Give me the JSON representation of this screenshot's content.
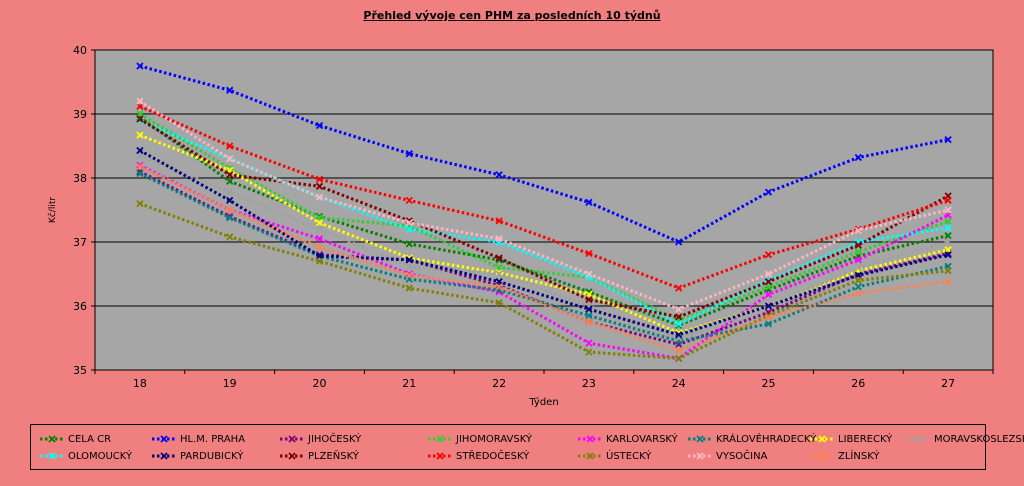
{
  "chart_data": {
    "type": "line",
    "title": "Přehled vývoje cen PHM za posledních 10 týdnů",
    "xlabel": "Týden",
    "ylabel": "Kč/litr",
    "x": [
      18,
      19,
      20,
      21,
      22,
      23,
      24,
      25,
      26,
      27
    ],
    "ylim": [
      35,
      40
    ],
    "yticks": [
      35,
      36,
      37,
      38,
      39,
      40
    ],
    "grid": true,
    "legend": "bottom",
    "series": [
      {
        "name": "CELA CR",
        "color": "#008000",
        "values": [
          38.95,
          37.95,
          37.4,
          36.97,
          36.72,
          36.22,
          35.7,
          36.25,
          36.78,
          37.1
        ]
      },
      {
        "name": "HL.M. PRAHA",
        "color": "#0000ff",
        "values": [
          39.75,
          39.37,
          38.82,
          38.38,
          38.05,
          37.62,
          37.0,
          37.78,
          38.32,
          38.6
        ]
      },
      {
        "name": "JIHOČESKÝ",
        "color": "#800080",
        "values": [
          38.1,
          37.4,
          36.8,
          36.72,
          36.32,
          35.75,
          35.4,
          35.9,
          36.5,
          36.82
        ]
      },
      {
        "name": "JIHOMORAVSKÝ",
        "color": "#33cc33",
        "values": [
          39.0,
          38.15,
          37.38,
          37.25,
          36.6,
          36.45,
          35.78,
          36.3,
          36.85,
          37.32
        ]
      },
      {
        "name": "KARLOVARSKÝ",
        "color": "#ff00ff",
        "values": [
          38.2,
          37.5,
          37.05,
          36.5,
          36.22,
          35.42,
          35.18,
          36.18,
          36.72,
          37.42
        ]
      },
      {
        "name": "KRÁLOVÉHRADECKÝ",
        "color": "#008080",
        "values": [
          38.07,
          37.38,
          36.78,
          36.42,
          36.25,
          35.85,
          35.45,
          35.72,
          36.3,
          36.62
        ]
      },
      {
        "name": "LIBERECKÝ",
        "color": "#ffff00",
        "values": [
          38.67,
          38.12,
          37.3,
          36.75,
          36.52,
          36.18,
          35.58,
          36.0,
          36.55,
          36.88
        ]
      },
      {
        "name": "MORAVSKOSLEZSKÝ",
        "color": "#a0a0a0",
        "values": [
          38.35,
          37.78,
          37.2,
          36.62,
          36.5,
          36.0,
          35.5,
          36.0,
          36.6,
          37.0
        ]
      },
      {
        "name": "OLOMOUCKÝ",
        "color": "#00ffff",
        "values": [
          38.9,
          38.3,
          37.7,
          37.2,
          37.0,
          36.45,
          35.72,
          36.4,
          37.0,
          37.22
        ]
      },
      {
        "name": "PARDUBICKÝ",
        "color": "#000080",
        "values": [
          38.43,
          37.65,
          36.78,
          36.72,
          36.38,
          35.95,
          35.55,
          36.0,
          36.48,
          36.8
        ]
      },
      {
        "name": "PLZEŇSKÝ",
        "color": "#800000",
        "values": [
          38.92,
          38.05,
          37.87,
          37.33,
          36.75,
          36.1,
          35.83,
          36.38,
          36.95,
          37.72
        ]
      },
      {
        "name": "STŘEDOČESKÝ",
        "color": "#ff0000",
        "values": [
          39.12,
          38.5,
          37.98,
          37.65,
          37.33,
          36.82,
          36.28,
          36.8,
          37.2,
          37.65
        ]
      },
      {
        "name": "ÚSTECKÝ",
        "color": "#808000",
        "values": [
          37.6,
          37.08,
          36.7,
          36.28,
          36.05,
          35.28,
          35.18,
          35.85,
          36.4,
          36.55
        ]
      },
      {
        "name": "VYSOČINA",
        "color": "#ffb6c1",
        "values": [
          39.2,
          38.3,
          37.7,
          37.3,
          37.05,
          36.5,
          35.95,
          36.5,
          37.18,
          37.5
        ]
      },
      {
        "name": "ZLÍNSKÝ",
        "color": "#ff8050",
        "values": [
          38.18,
          37.5,
          36.92,
          36.48,
          36.3,
          35.75,
          35.3,
          35.82,
          36.2,
          36.38
        ]
      }
    ]
  }
}
